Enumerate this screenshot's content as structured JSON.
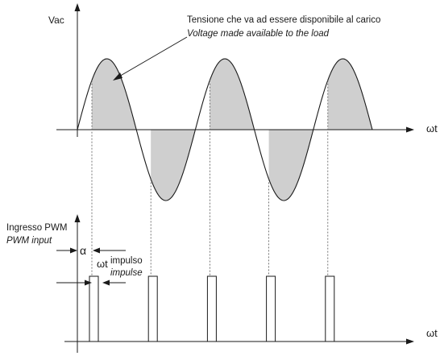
{
  "top_graph": {
    "y_axis_label": "Vac",
    "x_axis_label": "ωt",
    "annotation_it": "Tensione che va ad essere disponibile al carico",
    "annotation_en": "Voltage made available to the load"
  },
  "bottom_graph": {
    "input_label_it": "Ingresso PWM",
    "input_label_en": "PWM input",
    "alpha_label": "α",
    "wt_label": "ωt",
    "impulse_label_it": "impulso",
    "impulse_label_en": "impulse",
    "x_axis_label": "ωt"
  },
  "colors": {
    "ink": "#1a1a1a",
    "shade": "#cfcfcf"
  }
}
